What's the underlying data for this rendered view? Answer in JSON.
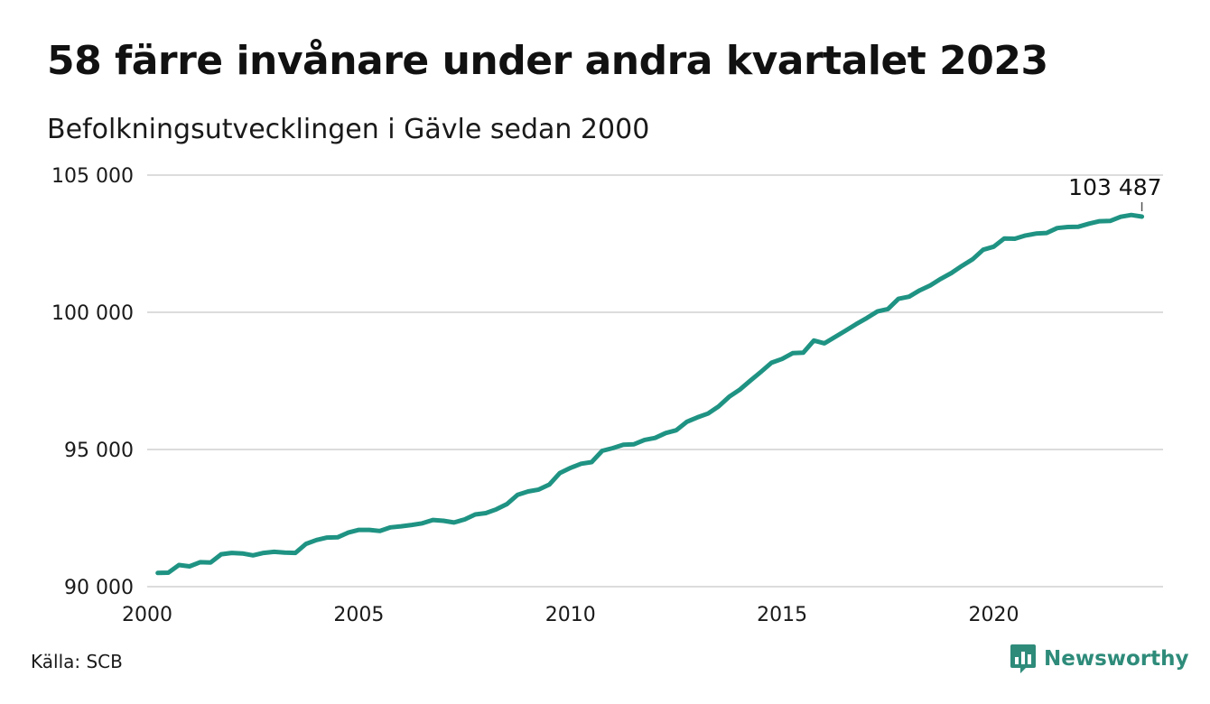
{
  "chart_data": {
    "type": "line",
    "title": "58 färre invånare under andra kvartalet 2023",
    "subtitle": "Befolkningsutvecklingen i Gävle sedan 2000",
    "ylim": [
      90000,
      105000
    ],
    "xlim": [
      2000,
      2024
    ],
    "y_ticks": [
      {
        "value": 90000,
        "label": "90 000"
      },
      {
        "value": 95000,
        "label": "95 000"
      },
      {
        "value": 100000,
        "label": "100 000"
      },
      {
        "value": 105000,
        "label": "105 000"
      }
    ],
    "x_ticks": [
      {
        "value": 2000,
        "label": "2000"
      },
      {
        "value": 2005,
        "label": "2005"
      },
      {
        "value": 2010,
        "label": "2010"
      },
      {
        "value": 2015,
        "label": "2015"
      },
      {
        "value": 2020,
        "label": "2020"
      }
    ],
    "grid": true,
    "line_color": "#1f9383",
    "end_label": "103 487",
    "series": [
      {
        "x": [
          2000.25,
          2000.5,
          2000.75,
          2001.0,
          2001.25,
          2001.5,
          2001.75,
          2002.0,
          2002.25,
          2002.5,
          2002.75,
          2003.0,
          2003.25,
          2003.5,
          2003.75,
          2004.0,
          2004.25,
          2004.5,
          2004.75,
          2005.0,
          2005.25,
          2005.5,
          2005.75,
          2006.0,
          2006.25,
          2006.5,
          2006.75,
          2007.0,
          2007.25,
          2007.5,
          2007.75,
          2008.0,
          2008.25,
          2008.5,
          2008.75,
          2009.0,
          2009.25,
          2009.5,
          2009.75,
          2010.0,
          2010.25,
          2010.5,
          2010.75,
          2011.0,
          2011.25,
          2011.5,
          2011.75,
          2012.0,
          2012.25,
          2012.5,
          2012.75,
          2013.0,
          2013.25,
          2013.5,
          2013.75,
          2014.0,
          2014.25,
          2014.5,
          2014.75,
          2015.0,
          2015.25,
          2015.5,
          2015.75,
          2016.0,
          2016.25,
          2016.5,
          2016.75,
          2017.0,
          2017.25,
          2017.5,
          2017.75,
          2018.0,
          2018.25,
          2018.5,
          2018.75,
          2019.0,
          2019.25,
          2019.5,
          2019.75,
          2020.0,
          2020.25,
          2020.5,
          2020.75,
          2021.0,
          2021.25,
          2021.5,
          2021.75,
          2022.0,
          2022.25,
          2022.5,
          2022.75,
          2023.0,
          2023.25,
          2023.5
        ],
        "y": [
          90500,
          90510,
          90790,
          90740,
          90890,
          90880,
          91180,
          91230,
          91210,
          91140,
          91230,
          91270,
          91240,
          91230,
          91560,
          91700,
          91790,
          91800,
          91970,
          92070,
          92070,
          92030,
          92160,
          92200,
          92250,
          92310,
          92430,
          92400,
          92340,
          92450,
          92630,
          92680,
          92820,
          93010,
          93350,
          93470,
          93540,
          93720,
          94140,
          94330,
          94480,
          94540,
          94950,
          95050,
          95170,
          95190,
          95350,
          95420,
          95600,
          95700,
          96010,
          96170,
          96310,
          96570,
          96920,
          97180,
          97510,
          97830,
          98160,
          98300,
          98510,
          98530,
          98970,
          98870,
          99100,
          99330,
          99570,
          99790,
          100030,
          100120,
          100490,
          100570,
          100800,
          100980,
          101220,
          101430,
          101690,
          101930,
          102280,
          102390,
          102690,
          102680,
          102800,
          102870,
          102890,
          103070,
          103110,
          103120,
          103230,
          103320,
          103330,
          103480,
          103545,
          103487
        ]
      }
    ]
  },
  "footer": {
    "source": "Källa: SCB",
    "logo_text": "Newsworthy"
  }
}
